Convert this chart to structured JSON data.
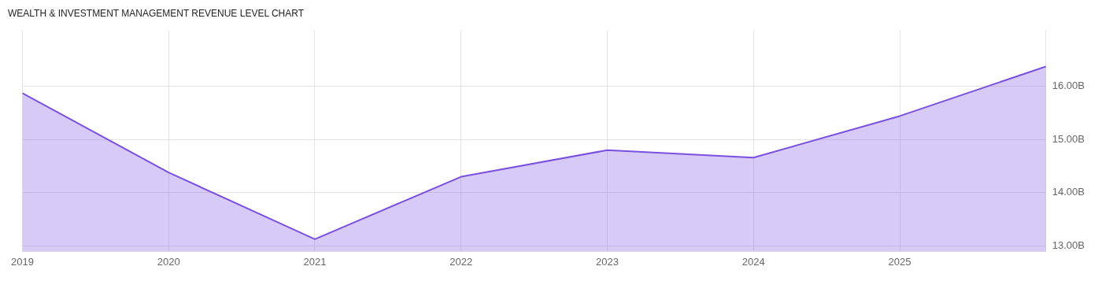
{
  "chart_data": {
    "type": "area",
    "title": "WEALTH & INVESTMENT MANAGEMENT REVENUE LEVEL CHART",
    "x": [
      2019,
      2020,
      2021,
      2022,
      2023,
      2024,
      2025,
      2026
    ],
    "values": [
      15.87,
      14.38,
      13.13,
      14.3,
      14.8,
      14.66,
      15.44,
      16.37
    ],
    "color": "#7b4fe0",
    "xlim": [
      2019,
      2026
    ],
    "xticks": [
      2019,
      2020,
      2021,
      2022,
      2023,
      2024,
      2025
    ],
    "ylim": [
      12.9,
      17.05
    ],
    "yticks": [
      {
        "value": 13,
        "label": "13.00B"
      },
      {
        "value": 14,
        "label": "14.00B"
      },
      {
        "value": 15,
        "label": "15.00B"
      },
      {
        "value": 16,
        "label": "16.00B"
      }
    ],
    "grid": true
  }
}
